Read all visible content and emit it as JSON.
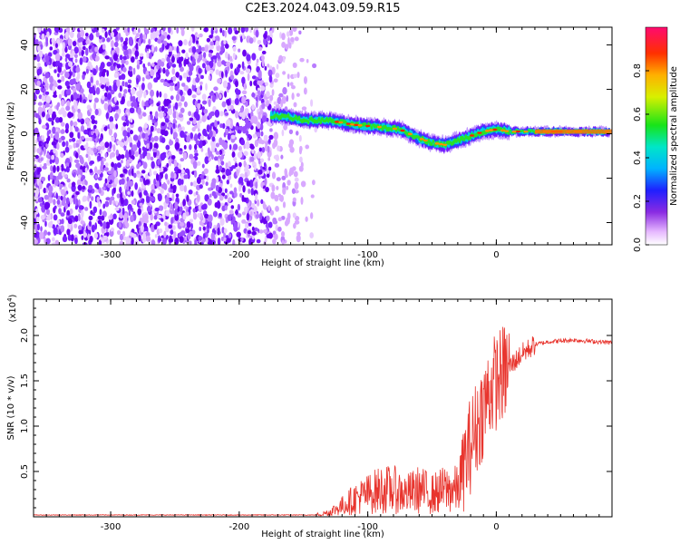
{
  "title": "C2E3.2024.043.09.59.R15",
  "chart_data": [
    {
      "type": "heatmap",
      "xlabel": "Height of straight line (km)",
      "ylabel": "Frequency (Hz)",
      "xlim": [
        -360,
        90
      ],
      "ylim": [
        -50,
        48
      ],
      "xticks": [
        -300,
        -200,
        -100,
        0
      ],
      "yticks": [
        -40,
        -20,
        0,
        20,
        40
      ],
      "colorbar": {
        "label": "Normalized spectral amplitude",
        "range": [
          0,
          1
        ],
        "ticks": [
          "0.0",
          "0.2",
          "0.4",
          "0.6",
          "0.8"
        ]
      },
      "ridge_frequency_track": {
        "x": [
          -165,
          -150,
          -130,
          -110,
          -90,
          -75,
          -60,
          -50,
          -40,
          -30,
          -20,
          -10,
          0,
          10,
          20,
          40,
          60,
          90
        ],
        "y": [
          8,
          6,
          6,
          4,
          3,
          2,
          -2,
          -4,
          -5,
          -3,
          -1,
          1,
          2,
          1,
          1,
          1,
          1,
          1
        ]
      }
    },
    {
      "type": "line",
      "xlabel": "Height of straight line (km)",
      "ylabel": "SNR (10 * v/v)",
      "yscale_label": "(x10",
      "yscale_exp": "4",
      "xlim": [
        -360,
        90
      ],
      "ylim": [
        0,
        2.4
      ],
      "xticks": [
        -300,
        -200,
        -100,
        0
      ],
      "yticks": [
        "0.5",
        "1.0",
        "1.5",
        "2.0"
      ],
      "series": [
        {
          "x": [
            -360,
            -140,
            -130,
            -120,
            -110,
            -100,
            -90,
            -80,
            -70,
            -60,
            -50,
            -40,
            -30,
            -20,
            -10,
            -5,
            0,
            10,
            20,
            30,
            40,
            60,
            90
          ],
          "y": [
            0.02,
            0.02,
            0.05,
            0.12,
            0.2,
            0.25,
            0.3,
            0.3,
            0.25,
            0.3,
            0.25,
            0.3,
            0.3,
            0.8,
            1.2,
            1.4,
            1.5,
            1.65,
            1.8,
            1.9,
            1.93,
            1.95,
            1.92
          ],
          "color": "#e8352e"
        }
      ]
    }
  ]
}
